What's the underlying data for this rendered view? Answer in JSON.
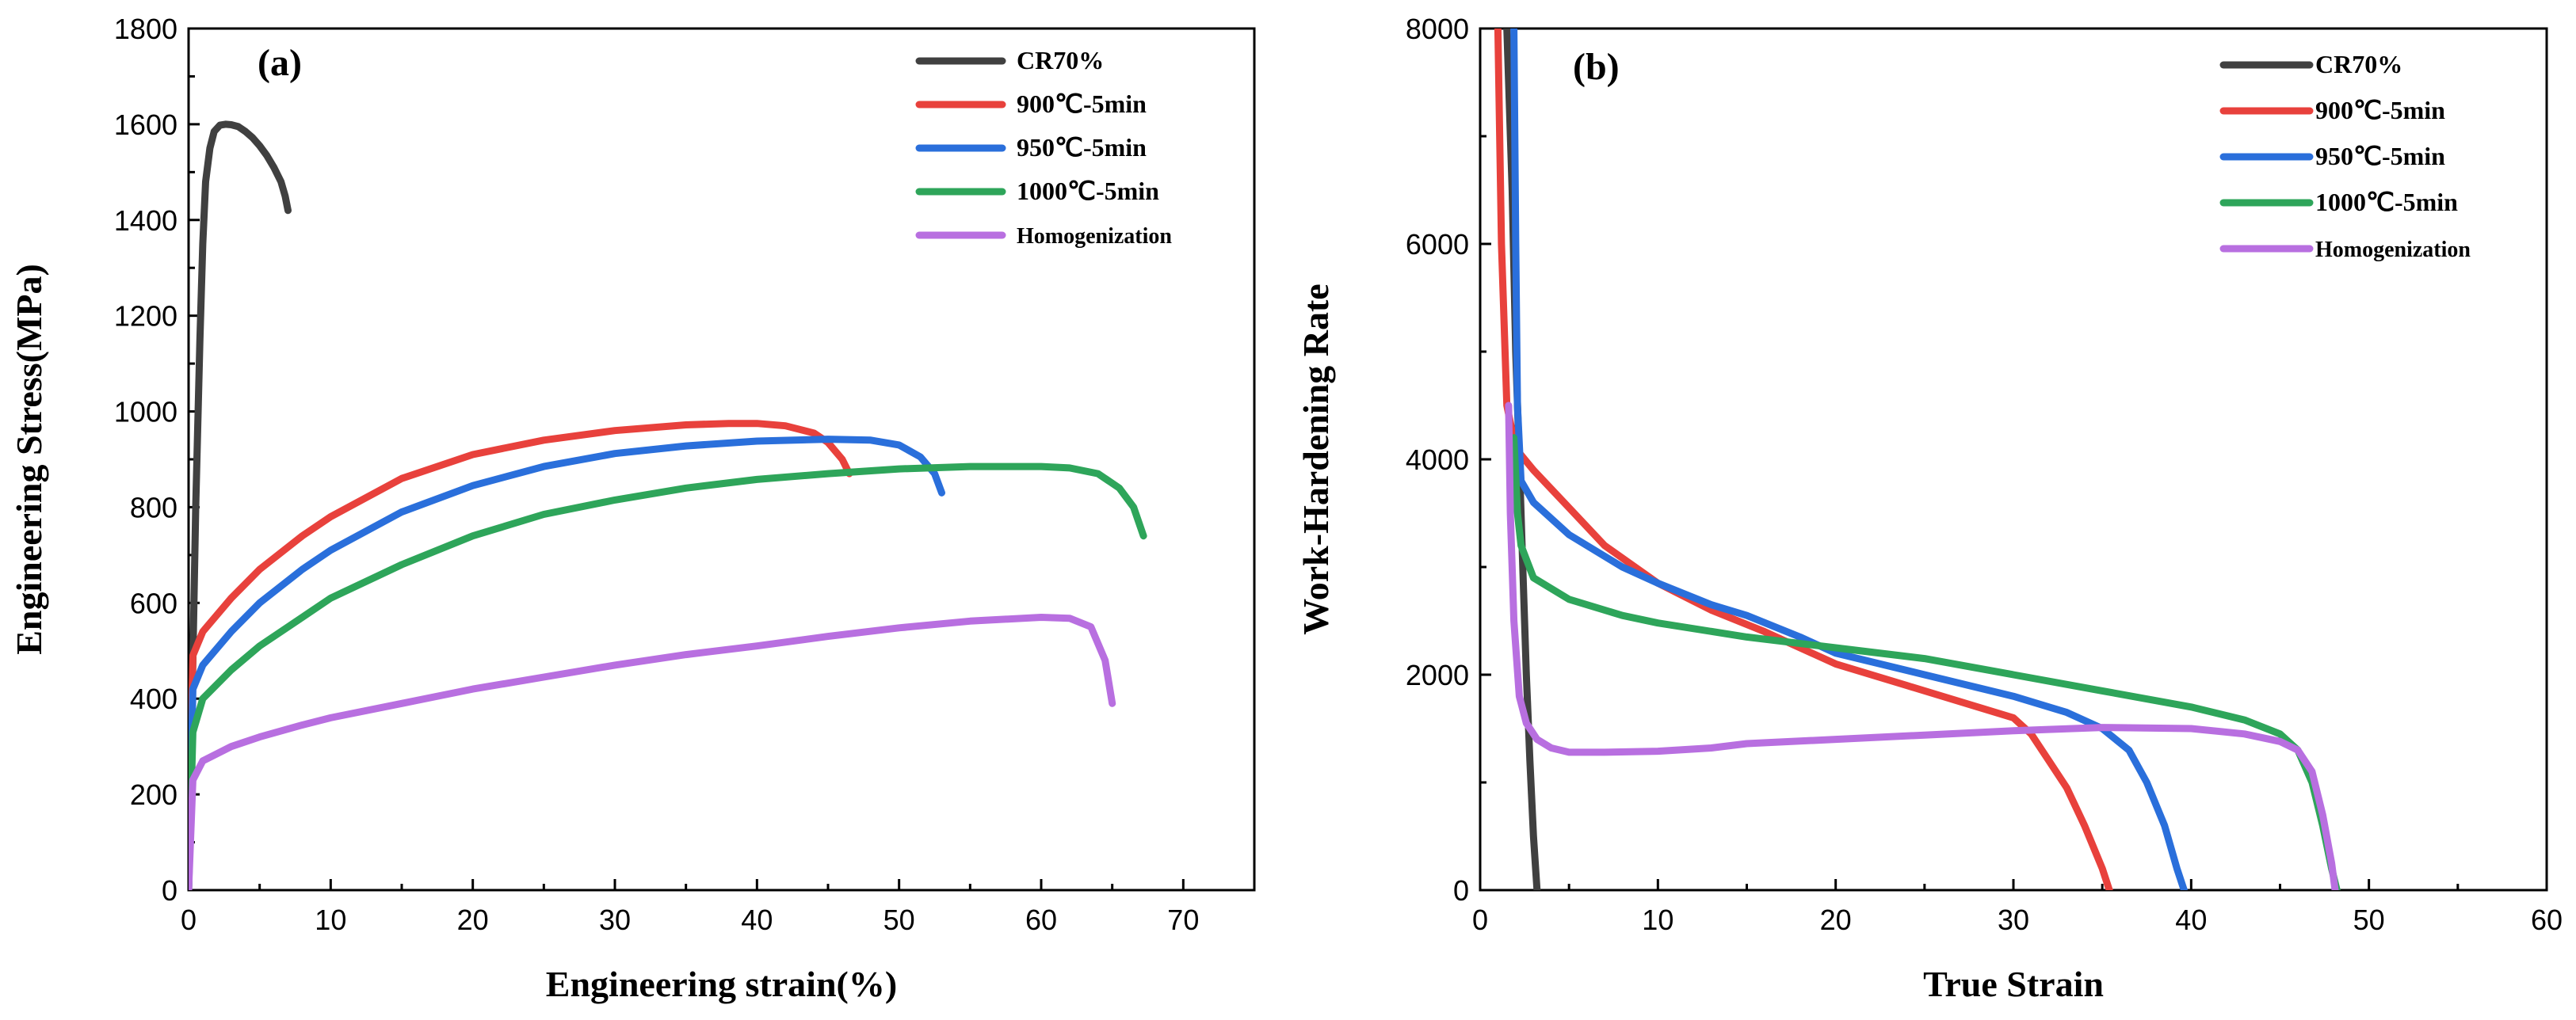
{
  "chart_data": [
    {
      "type": "line",
      "panel_label": "(a)",
      "title": "",
      "xlabel": "Engineering strain(%)",
      "ylabel": "Engineering  Stress(MPa)",
      "xlim": [
        0,
        75
      ],
      "ylim": [
        0,
        1800
      ],
      "xticks": [
        0,
        10,
        20,
        30,
        40,
        50,
        60,
        70
      ],
      "yticks": [
        0,
        200,
        400,
        600,
        800,
        1000,
        1200,
        1400,
        1600,
        1800
      ],
      "grid": false,
      "legend_position": "top-right",
      "series": [
        {
          "name": "CR70%",
          "color": "#404040",
          "x": [
            0,
            0.5,
            0.8,
            1.0,
            1.2,
            1.5,
            1.8,
            2.2,
            2.6,
            3.0,
            3.5,
            4.0,
            4.5,
            5.0,
            5.5,
            6.0,
            6.5,
            6.8,
            7.0
          ],
          "y": [
            0,
            800,
            1150,
            1350,
            1480,
            1550,
            1585,
            1598,
            1600,
            1599,
            1595,
            1585,
            1572,
            1555,
            1535,
            1510,
            1480,
            1450,
            1420
          ]
        },
        {
          "name": "900℃-5min",
          "color": "#e8413c",
          "x": [
            0,
            0.3,
            1,
            3,
            5,
            8,
            10,
            15,
            20,
            25,
            30,
            35,
            38,
            40,
            42,
            44,
            45,
            46,
            46.5
          ],
          "y": [
            0,
            490,
            540,
            610,
            670,
            740,
            780,
            860,
            910,
            940,
            960,
            972,
            975,
            975,
            970,
            955,
            935,
            900,
            870
          ]
        },
        {
          "name": "950℃-5min",
          "color": "#2a6fdb",
          "x": [
            0,
            0.3,
            1,
            3,
            5,
            8,
            10,
            15,
            20,
            25,
            30,
            35,
            40,
            45,
            48,
            50,
            51.5,
            52.5,
            53
          ],
          "y": [
            0,
            420,
            470,
            540,
            600,
            670,
            710,
            790,
            845,
            885,
            912,
            928,
            938,
            942,
            940,
            930,
            905,
            870,
            830
          ]
        },
        {
          "name": "1000℃-5min",
          "color": "#2ea55a",
          "x": [
            0,
            0.3,
            1,
            3,
            5,
            8,
            10,
            15,
            20,
            25,
            30,
            35,
            40,
            45,
            50,
            55,
            60,
            62,
            64,
            65.5,
            66.5,
            67.2
          ],
          "y": [
            0,
            330,
            400,
            460,
            510,
            570,
            610,
            680,
            740,
            785,
            815,
            840,
            858,
            870,
            880,
            885,
            885,
            882,
            870,
            840,
            800,
            740
          ]
        },
        {
          "name": "Homogenization",
          "color": "#b86fe0",
          "x": [
            0,
            0.3,
            1,
            3,
            5,
            8,
            10,
            15,
            20,
            25,
            30,
            35,
            40,
            45,
            50,
            55,
            60,
            62,
            63.5,
            64.5,
            65
          ],
          "y": [
            0,
            230,
            270,
            300,
            320,
            345,
            360,
            390,
            420,
            445,
            470,
            492,
            510,
            530,
            548,
            562,
            570,
            568,
            550,
            480,
            390
          ]
        }
      ]
    },
    {
      "type": "line",
      "panel_label": "(b)",
      "title": "",
      "xlabel": "True Strain",
      "ylabel": "Work-Hardening Rate",
      "xlim": [
        0,
        60
      ],
      "ylim": [
        0,
        8000
      ],
      "xticks": [
        0,
        10,
        20,
        30,
        40,
        50,
        60
      ],
      "yticks": [
        0,
        2000,
        4000,
        6000,
        8000
      ],
      "grid": false,
      "legend_position": "top-right",
      "series": [
        {
          "name": "CR70%",
          "color": "#404040",
          "x": [
            1.5,
            1.8,
            2.0,
            2.2,
            2.4,
            2.6,
            2.8,
            3.0,
            3.2
          ],
          "y": [
            8000,
            6500,
            5000,
            4000,
            3000,
            2000,
            1200,
            500,
            0
          ]
        },
        {
          "name": "900℃-5min",
          "color": "#e8413c",
          "x": [
            1.0,
            1.2,
            1.5,
            2.0,
            3,
            5,
            7,
            10,
            13,
            16,
            20,
            24,
            28,
            30,
            31,
            32,
            33,
            34,
            35,
            35.4
          ],
          "y": [
            8000,
            6000,
            4500,
            4100,
            3900,
            3550,
            3200,
            2850,
            2600,
            2400,
            2100,
            1900,
            1700,
            1600,
            1450,
            1200,
            950,
            600,
            200,
            0
          ]
        },
        {
          "name": "950℃-5min",
          "color": "#2a6fdb",
          "x": [
            1.9,
            2.0,
            2.1,
            2.3,
            3,
            5,
            8,
            10,
            13,
            15,
            18,
            20,
            25,
            30,
            33,
            35,
            36.5,
            37.5,
            38.5,
            39.2,
            39.6
          ],
          "y": [
            8000,
            6000,
            4500,
            3800,
            3600,
            3300,
            3000,
            2850,
            2650,
            2550,
            2350,
            2200,
            2000,
            1800,
            1650,
            1500,
            1300,
            1000,
            600,
            200,
            0
          ]
        },
        {
          "name": "1000℃-5min",
          "color": "#2ea55a",
          "x": [
            1.9,
            2.1,
            2.3,
            3,
            5,
            8,
            10,
            15,
            20,
            25,
            30,
            35,
            40,
            43,
            45,
            46,
            46.8,
            47.4,
            47.9,
            48.2
          ],
          "y": [
            4200,
            3500,
            3200,
            2900,
            2700,
            2550,
            2480,
            2350,
            2250,
            2150,
            2000,
            1850,
            1700,
            1580,
            1450,
            1300,
            1000,
            600,
            200,
            0
          ]
        },
        {
          "name": "Homogenization",
          "color": "#b86fe0",
          "x": [
            1.6,
            1.7,
            1.9,
            2.2,
            2.6,
            3.2,
            4,
            5,
            7,
            10,
            13,
            15,
            20,
            25,
            30,
            35,
            40,
            43,
            45,
            46,
            46.8,
            47.4,
            47.9,
            48.1
          ],
          "y": [
            4500,
            3500,
            2500,
            1800,
            1550,
            1400,
            1320,
            1280,
            1280,
            1290,
            1320,
            1360,
            1400,
            1440,
            1480,
            1510,
            1500,
            1450,
            1380,
            1300,
            1100,
            700,
            250,
            0
          ]
        }
      ]
    }
  ]
}
